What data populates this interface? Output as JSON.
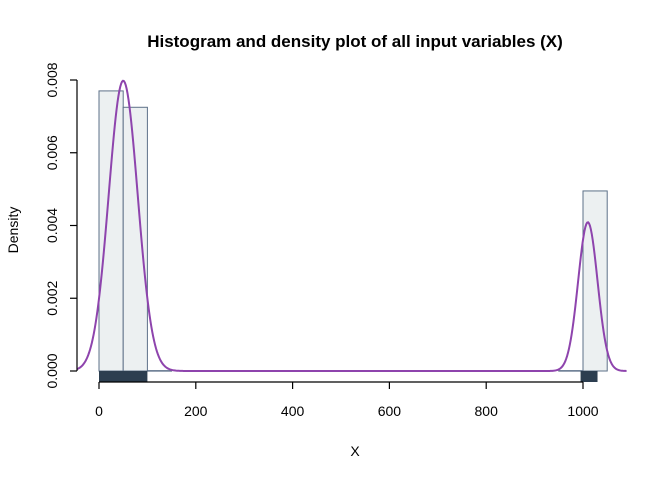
{
  "chart_data": {
    "type": "histogram",
    "title": "Histogram and density plot of all input variables (X)",
    "xlabel": "X",
    "ylabel": "Density",
    "xlim": [
      -45,
      1090
    ],
    "ylim": [
      0,
      0.008
    ],
    "x_ticks": [
      0,
      200,
      400,
      600,
      800,
      1000
    ],
    "y_ticks": [
      0,
      0.002,
      0.004,
      0.006,
      0.008
    ],
    "y_tick_labels": [
      "0.000",
      "0.002",
      "0.004",
      "0.006",
      "0.008"
    ],
    "bins": [
      {
        "start": 0,
        "end": 50,
        "density": 0.0077
      },
      {
        "start": 50,
        "end": 100,
        "density": 0.00725
      },
      {
        "start": 100,
        "end": 150,
        "density": 1e-05
      },
      {
        "start": 950,
        "end": 1000,
        "density": 1e-05
      },
      {
        "start": 1000,
        "end": 1050,
        "density": 0.00495
      }
    ],
    "density_curve": {
      "components": [
        {
          "mean": 50,
          "sd": 30,
          "weight": 0.6
        },
        {
          "mean": 1010,
          "sd": 20,
          "weight": 0.205
        }
      ],
      "x_range": [
        -45,
        1090
      ]
    },
    "rug": [
      [
        0,
        100
      ],
      [
        995,
        1030
      ]
    ],
    "grid": false,
    "colors": {
      "bar_fill": "#ecf0f1",
      "bar_stroke": "#5d7088",
      "density_line": "#8e44ad",
      "rug": "#2c3e50"
    }
  }
}
